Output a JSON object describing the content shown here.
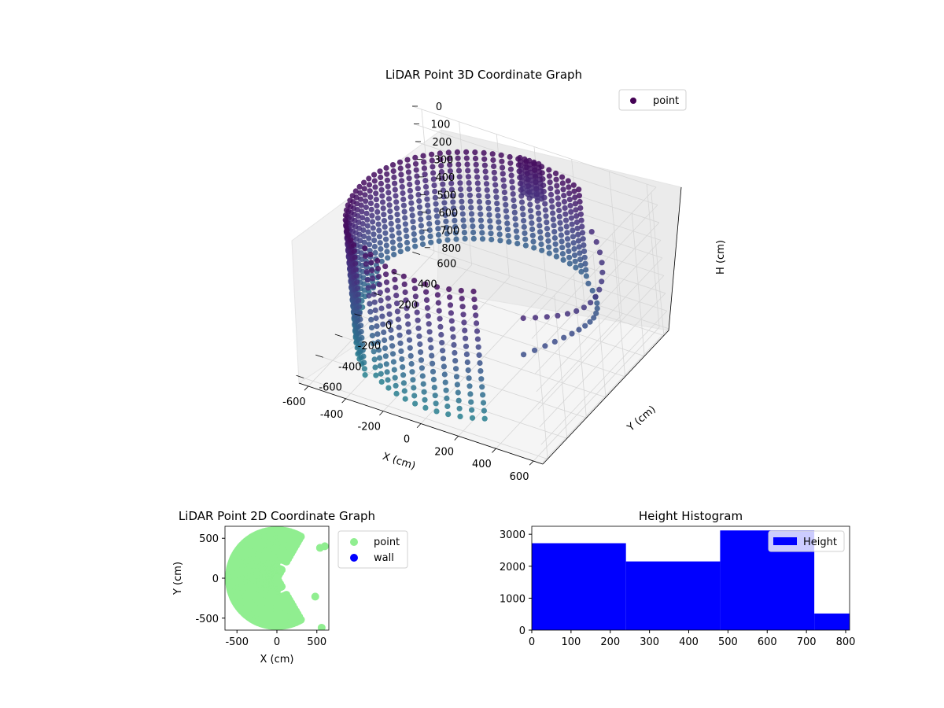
{
  "chart_data": [
    {
      "type": "scatter",
      "title": "LiDAR Point 3D Coordinate Graph",
      "xlabel": "X (cm)",
      "ylabel": "Y (cm)",
      "zlabel": "H (cm)",
      "x_ticks": [
        -600,
        -400,
        -200,
        0,
        200,
        400,
        600
      ],
      "y_ticks": [
        -600,
        -400,
        -200,
        0,
        200,
        400,
        600
      ],
      "z_ticks": [
        0,
        100,
        200,
        300,
        400,
        500,
        600,
        700,
        800
      ],
      "legend": [
        "point"
      ],
      "legend_position": "top-right",
      "colormap": "viridis",
      "grid": true
    },
    {
      "type": "scatter",
      "title": "LiDAR Point 2D Coordinate Graph",
      "xlabel": "X (cm)",
      "ylabel": "Y (cm)",
      "x_ticks": [
        -500,
        0,
        500
      ],
      "y_ticks": [
        500,
        0,
        -500
      ],
      "xlim": [
        -650,
        650
      ],
      "ylim": [
        -650,
        650
      ],
      "series": [
        {
          "name": "point",
          "color": "#90ee90"
        },
        {
          "name": "wall",
          "color": "#0000ff"
        }
      ],
      "legend_position": "outside-right"
    },
    {
      "type": "bar",
      "title": "Height Histogram",
      "x_ticks": [
        0,
        100,
        200,
        300,
        400,
        500,
        600,
        700,
        800
      ],
      "y_ticks": [
        0,
        1000,
        2000,
        3000
      ],
      "xlim": [
        0,
        810
      ],
      "ylim": [
        0,
        3250
      ],
      "bins": [
        {
          "x0": 0,
          "x1": 240,
          "value": 2720
        },
        {
          "x0": 240,
          "x1": 480,
          "value": 2150
        },
        {
          "x0": 480,
          "x1": 720,
          "value": 3120
        },
        {
          "x0": 720,
          "x1": 810,
          "value": 520
        }
      ],
      "series": [
        {
          "name": "Height",
          "color": "#0000ff"
        }
      ],
      "legend_position": "top-right"
    }
  ]
}
